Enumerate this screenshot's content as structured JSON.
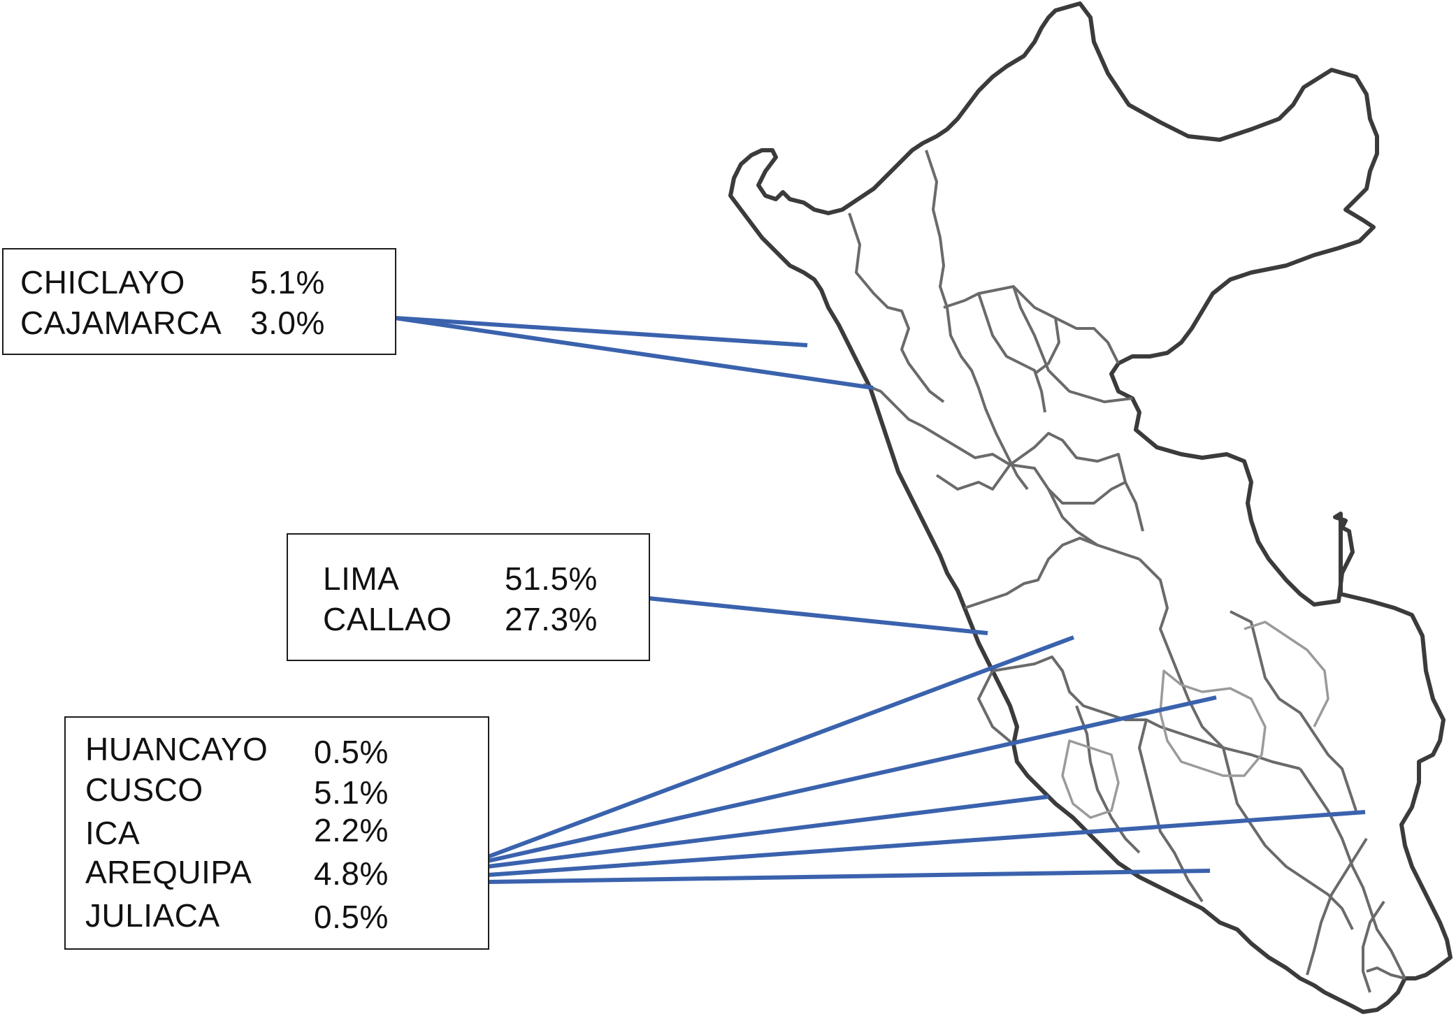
{
  "map": {
    "country_outline_icon": "peru-outline-icon",
    "leader_color": "#3a62ad",
    "border_color": "#3b3b3b"
  },
  "groups": [
    {
      "id": "north",
      "entries": [
        {
          "city": "CHICLAYO",
          "percent": "5.1%"
        },
        {
          "city": "CAJAMARCA",
          "percent": "3.0%"
        }
      ]
    },
    {
      "id": "central",
      "entries": [
        {
          "city": "LIMA",
          "percent": "51.5%"
        },
        {
          "city": "CALLAO",
          "percent": "27.3%"
        }
      ]
    },
    {
      "id": "south",
      "entries": [
        {
          "city": "HUANCAYO",
          "percent": "0.5%"
        },
        {
          "city": "CUSCO",
          "percent": "5.1%"
        },
        {
          "city": "ICA",
          "percent": "2.2%"
        },
        {
          "city": "AREQUIPA",
          "percent": "4.8%"
        },
        {
          "city": "JULIACA",
          "percent": "0.5%"
        }
      ]
    }
  ]
}
